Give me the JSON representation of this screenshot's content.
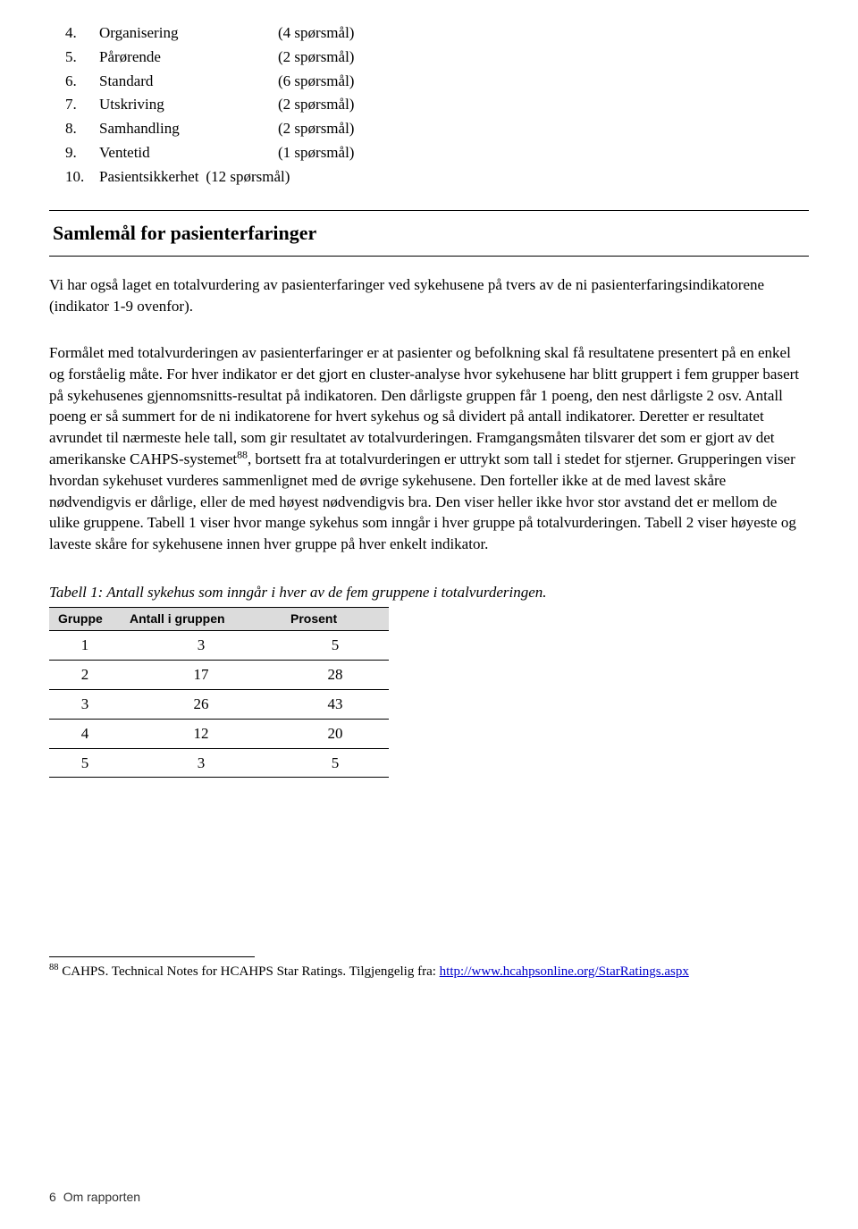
{
  "list": [
    {
      "num": "4.",
      "name": "Organisering",
      "count": "(4 spørsmål)"
    },
    {
      "num": "5.",
      "name": "Pårørende",
      "count": "(2 spørsmål)"
    },
    {
      "num": "6.",
      "name": "Standard",
      "count": "(6 spørsmål)"
    },
    {
      "num": "7.",
      "name": "Utskriving",
      "count": "(2 spørsmål)"
    },
    {
      "num": "8.",
      "name": "Samhandling",
      "count": "(2 spørsmål)"
    },
    {
      "num": "9.",
      "name": "Ventetid",
      "count": "(1 spørsmål)"
    },
    {
      "num": "10.",
      "name": "Pasientsikkerhet",
      "count": "(12 spørsmål)"
    }
  ],
  "heading": "Samlemål for pasienterfaringer",
  "para1": "Vi har også laget en totalvurdering av pasienterfaringer ved sykehusene på tvers av de ni pasienterfaringsindikatorene (indikator 1-9 ovenfor).",
  "para2_a": "Formålet med totalvurderingen av pasienterfaringer er at pasienter og befolkning skal få resultatene presentert på en enkel og forståelig måte. For hver indikator er det gjort en cluster-analyse hvor sykehusene har blitt gruppert i fem grupper basert på sykehusenes gjennomsnitts-resultat på indikatoren. Den dårligste gruppen får 1 poeng, den nest dårligste 2 osv. Antall poeng er så summert for de ni indikatorene for hvert sykehus og så dividert på antall indikatorer. Deretter er resultatet avrundet til nærmeste hele tall, som gir resultatet av totalvurderingen. Framgangsmåten tilsvarer det som er gjort av det amerikanske CAHPS-systemet",
  "para2_sup": "88",
  "para2_b": ", bortsett fra at totalvurderingen er uttrykt som tall i stedet for stjerner. Grupperingen viser hvordan sykehuset vurderes sammenlignet med de øvrige sykehusene. Den forteller ikke at de med lavest skåre nødvendigvis er dårlige, eller de med høyest nødvendigvis bra. Den viser heller ikke hvor stor avstand det er mellom de ulike gruppene. Tabell 1 viser hvor mange sykehus som inngår i hver gruppe på totalvurderingen. Tabell 2 viser høyeste og laveste skåre for sykehusene innen hver gruppe på hver enkelt indikator.",
  "table": {
    "caption": "Tabell 1: Antall sykehus som inngår i hver av de fem gruppene i totalvurderingen.",
    "columns": [
      "Gruppe",
      "Antall i gruppen",
      "Prosent"
    ],
    "rows": [
      [
        "1",
        "3",
        "5"
      ],
      [
        "2",
        "17",
        "28"
      ],
      [
        "3",
        "26",
        "43"
      ],
      [
        "4",
        "12",
        "20"
      ],
      [
        "5",
        "3",
        "5"
      ]
    ]
  },
  "footnote": {
    "num": "88",
    "text": " CAHPS. Technical Notes for HCAHPS Star Ratings. Tilgjengelig fra: ",
    "link_text": "http://www.hcahpsonline.org/StarRatings.aspx"
  },
  "footer": {
    "page": "6",
    "section": "Om rapporten"
  }
}
